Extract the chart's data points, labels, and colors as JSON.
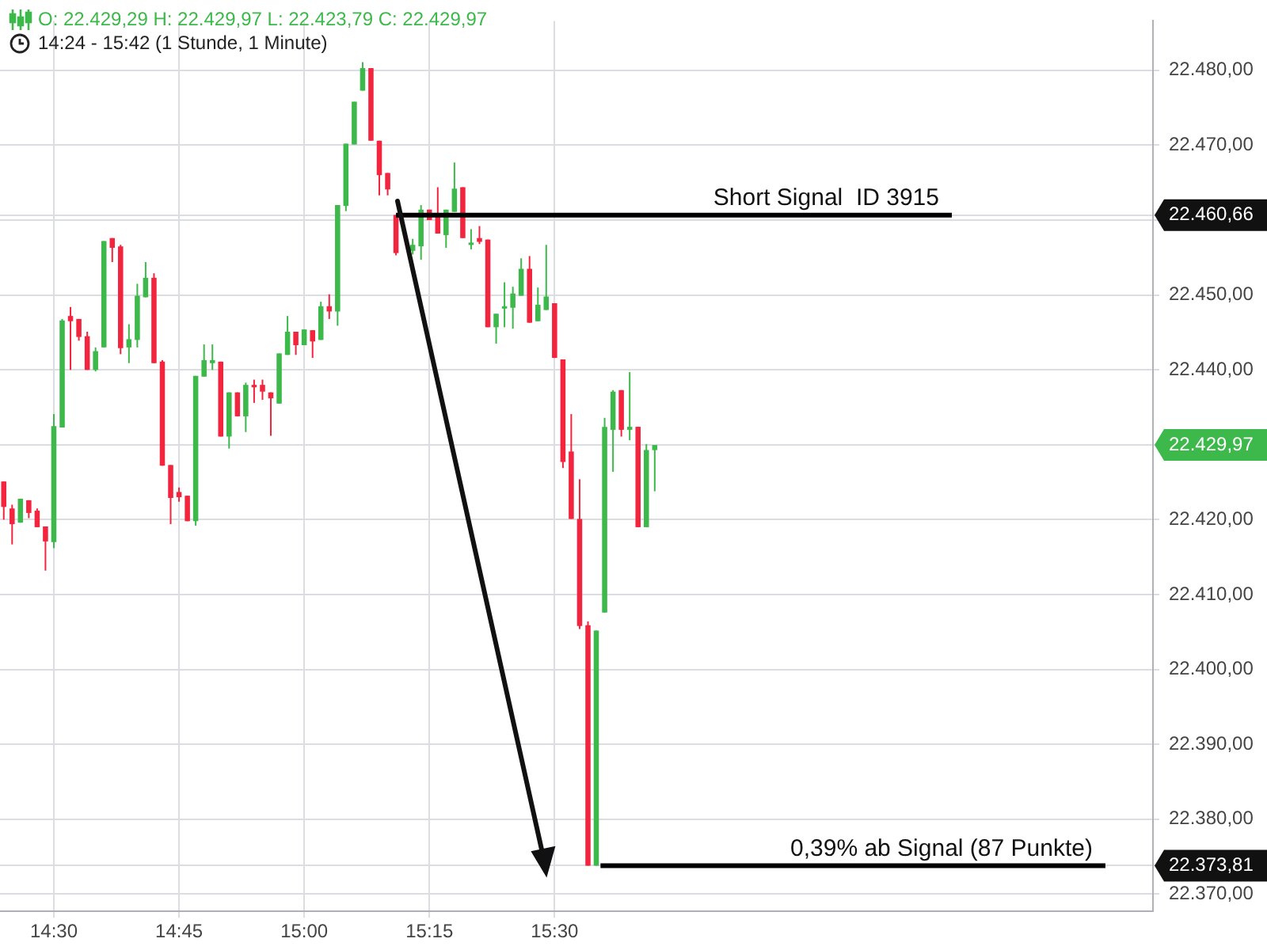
{
  "chart_data": {
    "type": "candlestick",
    "title": "O: 22.429,29  H: 22.429,97  L: 22.423,79  C: 22.429,97",
    "subtitle": "14:24 - 15:42  (1 Stunde, 1 Minute)",
    "x": [
      14.4,
      14.4167,
      14.4333,
      14.45,
      14.4667,
      14.4833,
      14.5,
      14.5167,
      14.5333,
      14.55,
      14.5667,
      14.5833,
      14.6,
      14.6167,
      14.6333,
      14.65,
      14.6667,
      14.6833,
      14.7,
      14.7167,
      14.7333,
      14.75,
      14.7667,
      14.7833,
      14.8,
      14.8167,
      14.8333,
      14.85,
      14.8667,
      14.8833,
      14.9,
      14.9167,
      14.9333,
      14.95,
      14.9667,
      14.9833,
      15,
      15.0167,
      15.0333,
      15.05,
      15.0667,
      15.0833,
      15.1,
      15.1167,
      15.1333,
      15.15,
      15.1667,
      15.1833,
      15.2167,
      15.2333,
      15.25,
      15.2667,
      15.2833,
      15.3,
      15.3167,
      15.3333,
      15.35,
      15.3667,
      15.3833,
      15.4,
      15.4167,
      15.4333,
      15.45,
      15.4667,
      15.4833,
      15.5,
      15.5167,
      15.5333,
      15.55,
      15.5667,
      15.5833,
      15.6,
      15.6167,
      15.6333,
      15.65,
      15.6667,
      15.6833,
      15.7
    ],
    "ohlc": [
      [
        22425.1,
        22425.1,
        22420.0,
        22421.7
      ],
      [
        22421.5,
        22422.0,
        22416.7,
        22419.4
      ],
      [
        22419.6,
        22422.8,
        22419.6,
        22422.8
      ],
      [
        22422.6,
        22422.6,
        22420.2,
        22420.9
      ],
      [
        22421.2,
        22421.5,
        22419.0,
        22419.0
      ],
      [
        22419.1,
        22419.1,
        22413.2,
        22417.1
      ],
      [
        22417.0,
        22434.1,
        22416.2,
        22432.5
      ],
      [
        22432.3,
        22446.8,
        22432.3,
        22446.6
      ],
      [
        22447.2,
        22448.4,
        22440.0,
        22446.5
      ],
      [
        22446.8,
        22446.8,
        22443.9,
        22444.4
      ],
      [
        22444.5,
        22445.1,
        22440.0,
        22440.0
      ],
      [
        22440.0,
        22443.0,
        22439.8,
        22442.5
      ],
      [
        22443.0,
        22457.2,
        22443.0,
        22457.2
      ],
      [
        22457.6,
        22457.6,
        22454.4,
        22456.3
      ],
      [
        22456.5,
        22456.7,
        22442.1,
        22442.9
      ],
      [
        22443.0,
        22446.1,
        22440.9,
        22444.1
      ],
      [
        22444.0,
        22451.5,
        22443.0,
        22449.9
      ],
      [
        22449.7,
        22454.4,
        22449.7,
        22452.3
      ],
      [
        22452.3,
        22452.9,
        22440.9,
        22440.9
      ],
      [
        22441.1,
        22441.3,
        22427.2,
        22427.2
      ],
      [
        22427.3,
        22427.3,
        22419.4,
        22422.9
      ],
      [
        22423.7,
        22424.3,
        22422.4,
        22423.0
      ],
      [
        22423.2,
        22423.2,
        22419.8,
        22419.8
      ],
      [
        22419.8,
        22439.2,
        22419.2,
        22439.2
      ],
      [
        22439.1,
        22443.4,
        22439.1,
        22441.3
      ],
      [
        22440.9,
        22443.4,
        22440.0,
        22441.3
      ],
      [
        22441.1,
        22441.1,
        22431.1,
        22431.1
      ],
      [
        22431.1,
        22437.0,
        22429.5,
        22437.0
      ],
      [
        22437.0,
        22437.0,
        22433.8,
        22433.8
      ],
      [
        22433.8,
        22438.3,
        22431.7,
        22438.0
      ],
      [
        22438.0,
        22438.7,
        22435.6,
        22437.9
      ],
      [
        22438.0,
        22438.7,
        22436.0,
        22437.1
      ],
      [
        22437.0,
        22437.0,
        22431.2,
        22436.2
      ],
      [
        22435.5,
        22442.2,
        22435.5,
        22442.2
      ],
      [
        22442.0,
        22447.2,
        22442.0,
        22445.1
      ],
      [
        22445.1,
        22445.1,
        22442.0,
        22443.3
      ],
      [
        22443.3,
        22445.4,
        22443.3,
        22445.4
      ],
      [
        22445.3,
        22445.3,
        22441.6,
        22443.8
      ],
      [
        22444.0,
        22449.1,
        22444.0,
        22448.5
      ],
      [
        22448.5,
        22450.1,
        22446.8,
        22447.8
      ],
      [
        22447.8,
        22462.0,
        22445.9,
        22462.0
      ],
      [
        22461.9,
        22470.2,
        22461.2,
        22470.2
      ],
      [
        22470.1,
        22475.8,
        22470.1,
        22475.8
      ],
      [
        22477.3,
        22481.1,
        22477.3,
        22480.3
      ],
      [
        22480.3,
        22480.3,
        22470.6,
        22470.6
      ],
      [
        22470.6,
        22470.6,
        22463.3,
        22466.0
      ],
      [
        22466.3,
        22466.3,
        22463.3,
        22464.1
      ],
      [
        22460.7,
        22460.7,
        22455.3,
        22455.6
      ],
      [
        22455.9,
        22457.5,
        22455.4,
        22456.7
      ],
      [
        22456.5,
        22462.0,
        22454.7,
        22461.4
      ],
      [
        22461.4,
        22461.4,
        22460.0,
        22460.0
      ],
      [
        22460.9,
        22464.4,
        22458.2,
        22458.2
      ],
      [
        22458.0,
        22461.4,
        22456.3,
        22461.4
      ],
      [
        22461.1,
        22467.7,
        22461.1,
        22464.2
      ],
      [
        22464.4,
        22464.4,
        22457.6,
        22457.6
      ],
      [
        22456.9,
        22458.8,
        22456.1,
        22457.0
      ],
      [
        22457.6,
        22459.2,
        22456.8,
        22457.1
      ],
      [
        22457.4,
        22457.4,
        22445.7,
        22445.7
      ],
      [
        22445.7,
        22447.5,
        22443.5,
        22447.5
      ],
      [
        22448.2,
        22451.7,
        22445.7,
        22448.5
      ],
      [
        22448.3,
        22451.1,
        22445.5,
        22450.2
      ],
      [
        22449.9,
        22454.9,
        22449.9,
        22453.5
      ],
      [
        22453.5,
        22455.2,
        22446.3,
        22446.3
      ],
      [
        22446.5,
        22451.0,
        22446.5,
        22448.7
      ],
      [
        22448.0,
        22456.7,
        22448.0,
        22449.8
      ],
      [
        22448.9,
        22448.9,
        22441.6,
        22441.6
      ],
      [
        22441.4,
        22441.4,
        22426.9,
        22427.7
      ],
      [
        22429.1,
        22434.1,
        22420.1,
        22420.1
      ],
      [
        22420.1,
        22425.4,
        22405.4,
        22405.8
      ],
      [
        22405.9,
        22406.4,
        22373.8,
        22373.8
      ],
      [
        22373.8,
        22405.2,
        22373.8,
        22405.2
      ],
      [
        22407.6,
        22433.6,
        22407.6,
        22432.4
      ],
      [
        22432.0,
        22437.3,
        22426.4,
        22437.1
      ],
      [
        22437.3,
        22437.3,
        22431.1,
        22432.0
      ],
      [
        22432.0,
        22439.7,
        22430.6,
        22432.4
      ],
      [
        22432.4,
        22432.4,
        22419.0,
        22419.0
      ],
      [
        22419.0,
        22430.1,
        22419.0,
        22429.3
      ],
      [
        22429.29,
        22429.97,
        22423.79,
        22429.97
      ]
    ],
    "colors": [
      "#f2243e",
      "#f2243e",
      "#3db84a",
      "#f2243e",
      "#f2243e",
      "#f2243e",
      "#3db84a",
      "#3db84a",
      "#f2243e",
      "#f2243e",
      "#f2243e",
      "#3db84a",
      "#3db84a",
      "#f2243e",
      "#f2243e",
      "#3db84a",
      "#3db84a",
      "#3db84a",
      "#f2243e",
      "#f2243e",
      "#f2243e",
      "#f2243e",
      "#f2243e",
      "#3db84a",
      "#3db84a",
      "#3db84a",
      "#f2243e",
      "#3db84a",
      "#f2243e",
      "#3db84a",
      "#f2243e",
      "#f2243e",
      "#f2243e",
      "#3db84a",
      "#3db84a",
      "#f2243e",
      "#3db84a",
      "#f2243e",
      "#3db84a",
      "#f2243e",
      "#3db84a",
      "#3db84a",
      "#3db84a",
      "#3db84a",
      "#f2243e",
      "#f2243e",
      "#f2243e",
      "#f2243e",
      "#3db84a",
      "#3db84a",
      "#f2243e",
      "#f2243e",
      "#3db84a",
      "#3db84a",
      "#f2243e",
      "#3db84a",
      "#f2243e",
      "#f2243e",
      "#3db84a",
      "#3db84a",
      "#3db84a",
      "#3db84a",
      "#f2243e",
      "#3db84a",
      "#3db84a",
      "#f2243e",
      "#f2243e",
      "#f2243e",
      "#f2243e",
      "#f2243e",
      "#3db84a",
      "#3db84a",
      "#3db84a",
      "#f2243e",
      "#3db84a",
      "#f2243e",
      "#3db84a",
      "#3db84a"
    ],
    "series": [
      {
        "type": "line",
        "x": [
          15.1833,
          16.2933
        ],
        "values": [
          22460.66,
          22460.66
        ],
        "color": "#000000"
      },
      {
        "type": "line",
        "x": [
          15.5917,
          16.6
        ],
        "values": [
          22373.81,
          22373.81
        ],
        "color": "#000000"
      }
    ],
    "annotations": [
      {
        "text": "Short Signal  ID 3915",
        "x": 16.2933,
        "y": 22460.66
      },
      {
        "text": "0,39% ab Signal (87 Punkte)",
        "x": 16.6,
        "y": 22373.81
      }
    ],
    "xlim": [
      14.3925,
      16.695
    ],
    "ylim": [
      22367.7,
      22486.6
    ],
    "xticks": [
      {
        "value": 14.5,
        "label": "14:30"
      },
      {
        "value": 14.75,
        "label": "14:45"
      },
      {
        "value": 15,
        "label": "15:00"
      },
      {
        "value": 15.25,
        "label": "15:15"
      },
      {
        "value": 15.5,
        "label": "15:30"
      }
    ],
    "yticks": [
      {
        "value": 22370,
        "label": "22.370,00"
      },
      {
        "value": 22380,
        "label": "22.380,00"
      },
      {
        "value": 22390,
        "label": "22.390,00"
      },
      {
        "value": 22400,
        "label": "22.400,00"
      },
      {
        "value": 22410,
        "label": "22.410,00"
      },
      {
        "value": 22373.81,
        "label": "22.373,81"
      },
      {
        "value": 22420,
        "label": "22.420,00"
      },
      {
        "value": 22430,
        "label": null
      },
      {
        "value": 22429.97,
        "label": "22.429,97"
      },
      {
        "value": 22440,
        "label": "22.440,00"
      },
      {
        "value": 22450,
        "label": "22.450,00"
      },
      {
        "value": 22460,
        "label": null
      },
      {
        "value": 22460.66,
        "label": "22.460,66"
      },
      {
        "value": 22470,
        "label": "22.470,00"
      },
      {
        "value": 22480,
        "label": "22.480,00"
      }
    ],
    "grid": true,
    "legend": false
  }
}
